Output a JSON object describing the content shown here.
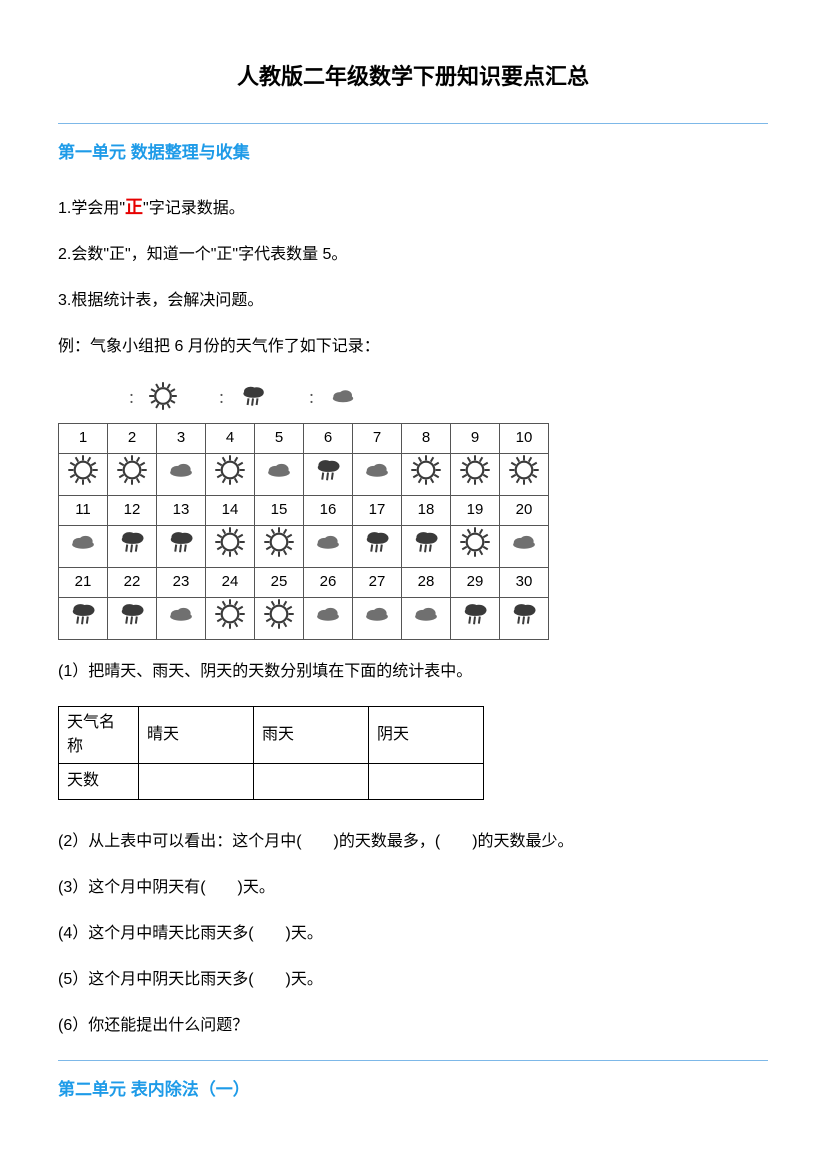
{
  "title": "人教版二年级数学下册知识要点汇总",
  "unit1": {
    "heading": "第一单元  数据整理与收集",
    "p1a": "1.学会用\"",
    "p1b": "正",
    "p1c": "\"字记录数据。",
    "p2": "2.会数\"正\"，知道一个\"正\"字代表数量 5。",
    "p3": "3.根据统计表，会解决问题。",
    "example_intro": "例：气象小组把 6 月份的天气作了如下记录：",
    "legend_sep": "：",
    "calendar": {
      "days_row1": [
        "1",
        "2",
        "3",
        "4",
        "5",
        "6",
        "7",
        "8",
        "9",
        "10"
      ],
      "icons_row1": [
        "sun",
        "sun",
        "cloud",
        "sun",
        "cloud",
        "rain",
        "cloud",
        "sun",
        "sun",
        "sun"
      ],
      "days_row2": [
        "11",
        "12",
        "13",
        "14",
        "15",
        "16",
        "17",
        "18",
        "19",
        "20"
      ],
      "icons_row2": [
        "cloud",
        "rain",
        "rain",
        "sun",
        "sun",
        "cloud",
        "rain",
        "rain",
        "sun",
        "cloud"
      ],
      "days_row3": [
        "21",
        "22",
        "23",
        "24",
        "25",
        "26",
        "27",
        "28",
        "29",
        "30"
      ],
      "icons_row3": [
        "rain",
        "rain",
        "cloud",
        "sun",
        "sun",
        "cloud",
        "cloud",
        "cloud",
        "rain",
        "rain"
      ]
    },
    "q1": "(1）把晴天、雨天、阴天的天数分别填在下面的统计表中。",
    "answer_table": {
      "r1": [
        "天气名称",
        "晴天",
        "雨天",
        "阴天"
      ],
      "r2": [
        "天数",
        "",
        "",
        ""
      ]
    },
    "q2": "(2）从上表中可以看出：这个月中(　　)的天数最多，(　　)的天数最少。",
    "q3": "(3）这个月中阴天有(　　)天。",
    "q4": "(4）这个月中晴天比雨天多(　　)天。",
    "q5": "(5）这个月中阴天比雨天多(　　)天。",
    "q6": "(6）你还能提出什么问题？"
  },
  "unit2": {
    "heading": "第二单元  表内除法（一）"
  },
  "colors": {
    "accent_blue": "#1e9be8",
    "accent_red": "#e60000",
    "rule_blue": "#7db8e8",
    "icon_dark": "#3a3a3a",
    "icon_mid": "#707070"
  },
  "icons": {
    "sun": {
      "type": "sun",
      "stroke": "#3a3a3a",
      "fill": "#ffffff"
    },
    "rain": {
      "type": "rain",
      "fill": "#3a3a3a"
    },
    "cloud": {
      "type": "cloud",
      "fill": "#707070"
    }
  }
}
